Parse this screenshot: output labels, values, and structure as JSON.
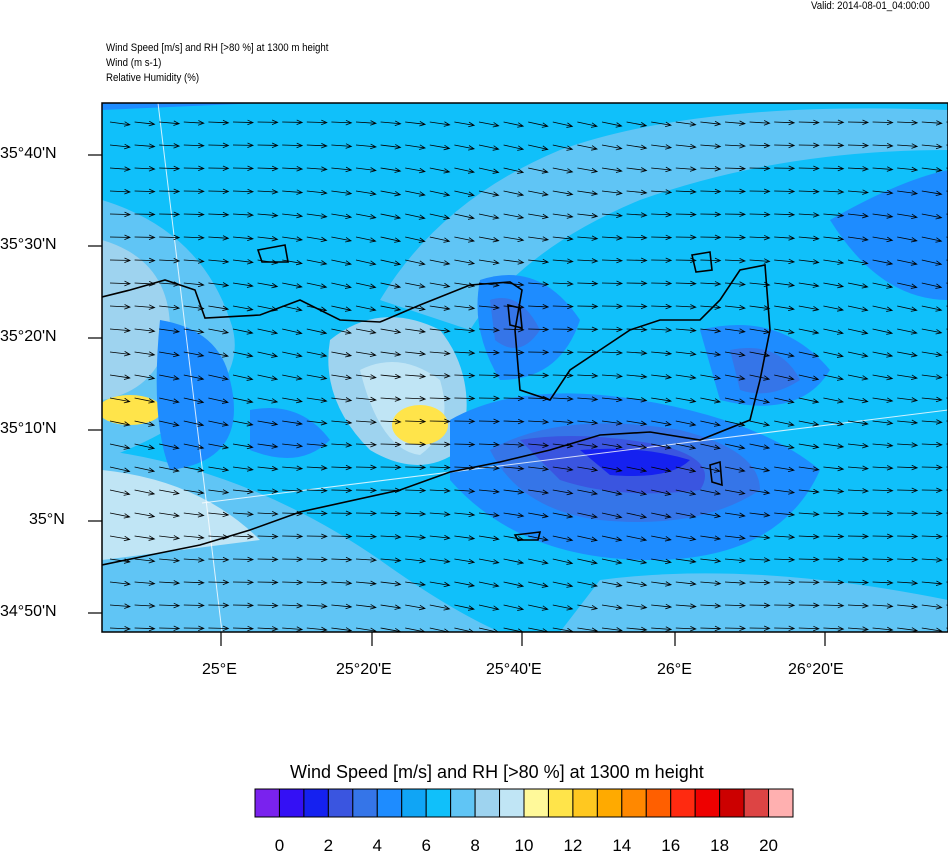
{
  "header": {
    "valid": "Valid: 2014-08-01_04:00:00",
    "title_lines": [
      "Wind Speed [m/s] and RH [>80 %] at 1300 m height",
      "Wind   (m s-1)",
      "Relative Humidity   (%)"
    ]
  },
  "axes": {
    "lat_labels": [
      "35°40'N",
      "35°30'N",
      "35°20'N",
      "35°10'N",
      "35°N",
      "34°50'N"
    ],
    "lon_labels": [
      "25°E",
      "25°20'E",
      "25°40'E",
      "26°E",
      "26°20'E"
    ]
  },
  "colorbar": {
    "title": "Wind Speed [m/s] and RH [>80 %] at 1300 m height",
    "colors": [
      "#7a22ee",
      "#3410f5",
      "#1521f0",
      "#3a55e0",
      "#3575e8",
      "#1e8cff",
      "#10a5f5",
      "#10c0fa",
      "#60c5f5",
      "#9ed3ef",
      "#c0e5f5",
      "#fff99a",
      "#ffe44a",
      "#ffc820",
      "#ffaa00",
      "#ff8800",
      "#ff5f00",
      "#ff2a10",
      "#ee0000",
      "#cc0000",
      "#dd4444",
      "#ffb0b0"
    ],
    "labels": [
      "0",
      "2",
      "4",
      "6",
      "8",
      "10",
      "12",
      "14",
      "16",
      "18",
      "20"
    ]
  }
}
